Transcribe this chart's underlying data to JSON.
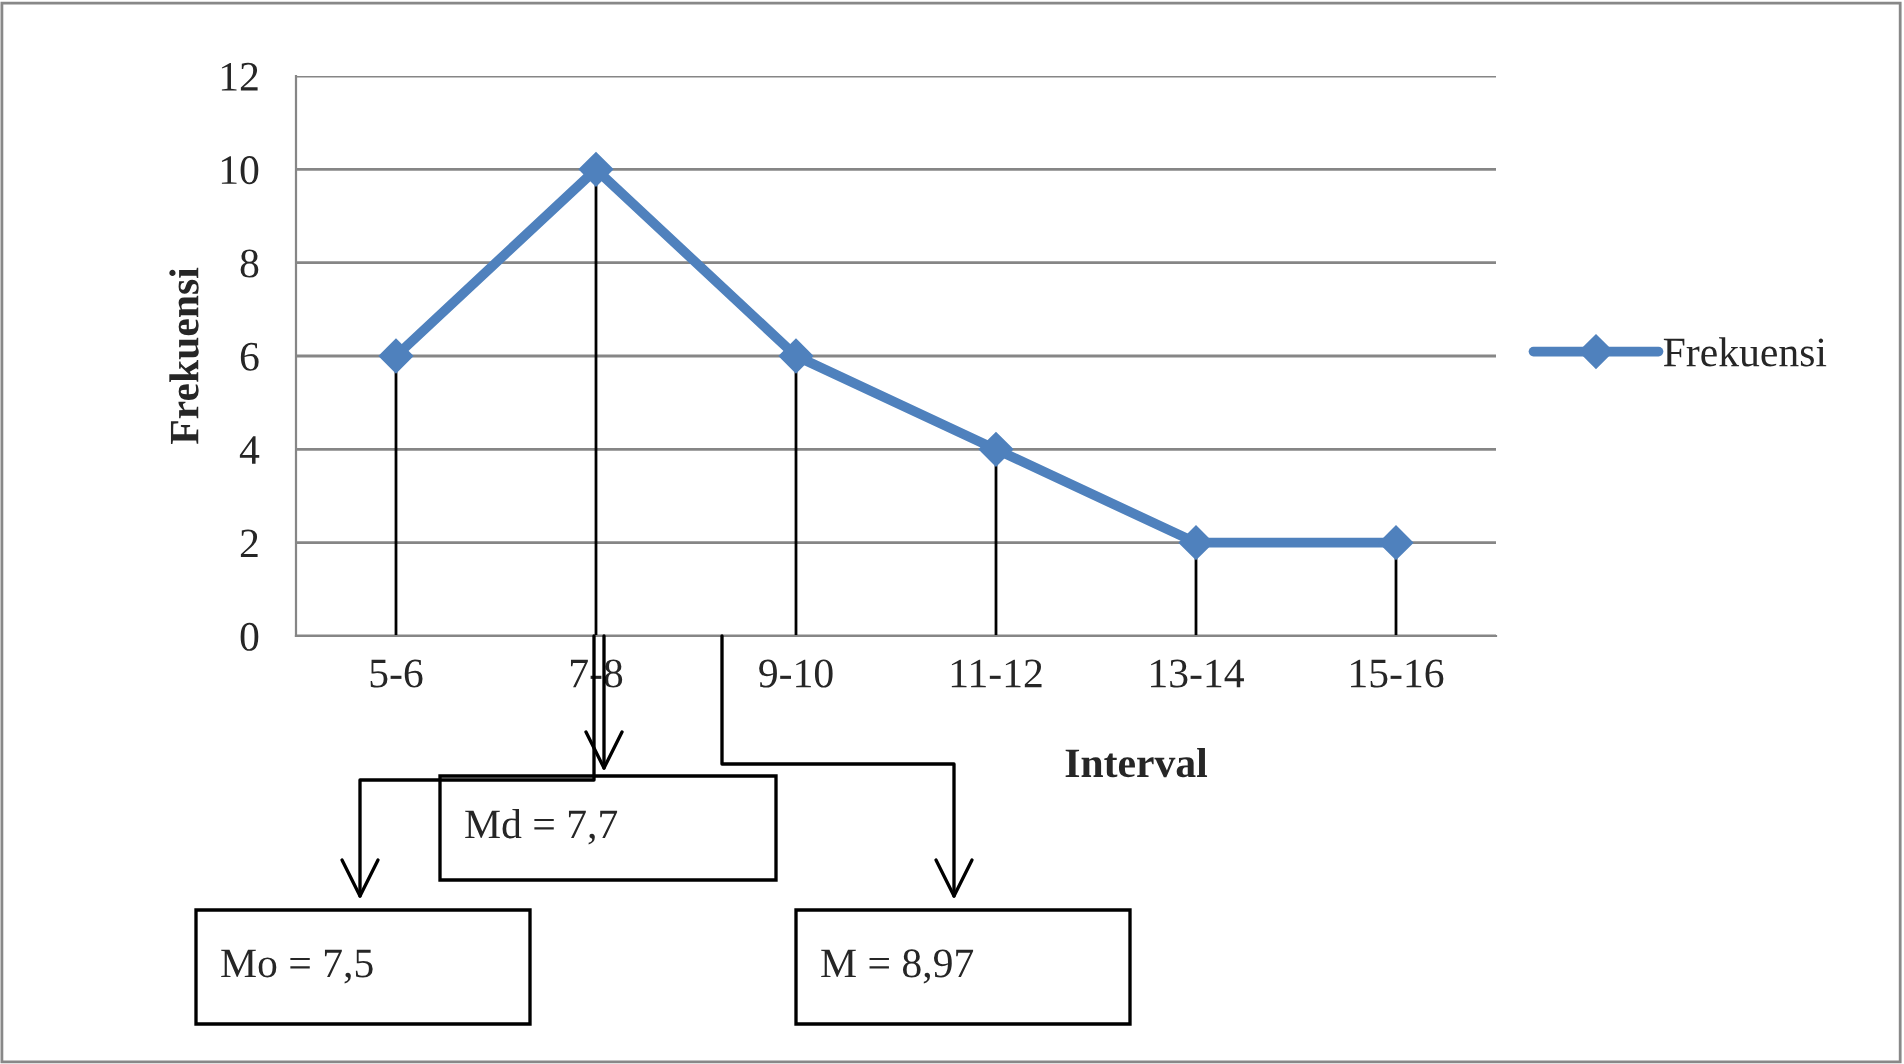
{
  "chart_data": {
    "type": "line",
    "xlabel": "Interval",
    "ylabel": "Frekuensi",
    "categories": [
      "5-6",
      "7-8",
      "9-10",
      "11-12",
      "13-14",
      "15-16"
    ],
    "series": [
      {
        "name": "Frekuensi",
        "color": "#4f81bd",
        "values": [
          6,
          10,
          6,
          4,
          2,
          2
        ],
        "errors": [
          [
            0,
            6
          ],
          [
            0,
            10
          ],
          [
            0,
            6
          ],
          [
            0,
            4
          ],
          [
            0,
            2
          ],
          [
            0,
            2
          ]
        ]
      }
    ],
    "ylim": [
      0,
      12
    ],
    "yticks": [
      0,
      2,
      4,
      6,
      8,
      10,
      12
    ],
    "grid": "y",
    "legend": "right",
    "marker": "diamond",
    "line_style": "solid",
    "annotations": [
      "Mo = 7,5",
      "Md = 7,7",
      "M = 8,97"
    ]
  }
}
